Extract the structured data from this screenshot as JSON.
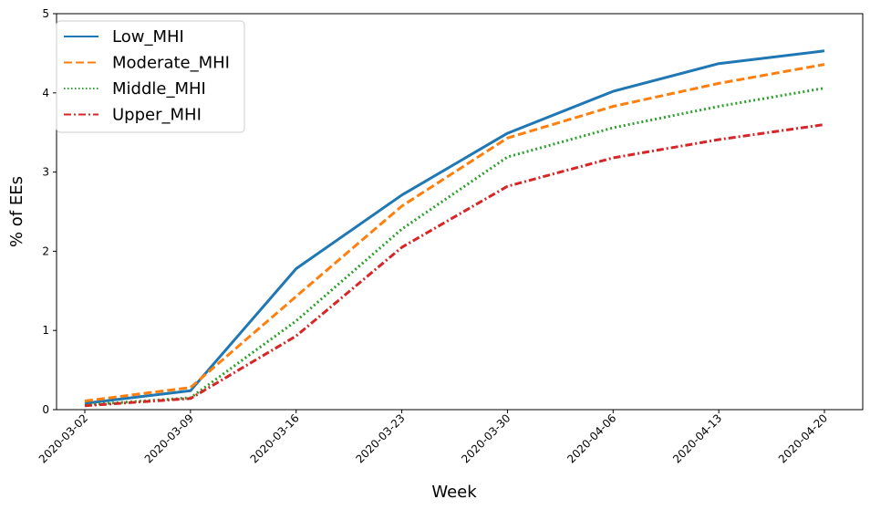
{
  "chart_data": {
    "type": "line",
    "xlabel": "Week",
    "ylabel": "% of EEs",
    "x": [
      "2020-03-02",
      "2020-03-09",
      "2020-03-16",
      "2020-03-23",
      "2020-03-30",
      "2020-04-06",
      "2020-04-13",
      "2020-04-20"
    ],
    "ylim": [
      0,
      5
    ],
    "yticks": [
      "0",
      "1",
      "2",
      "3",
      "4",
      "5"
    ],
    "legend_position": "top-left",
    "grid": false,
    "series": [
      {
        "name": "Low_MHI",
        "color": "#1f77b4",
        "style": "solid",
        "values": [
          0.08,
          0.24,
          1.78,
          2.71,
          3.49,
          4.02,
          4.37,
          4.53
        ]
      },
      {
        "name": "Moderate_MHI",
        "color": "#ff7f0e",
        "style": "dashed",
        "values": [
          0.11,
          0.28,
          1.43,
          2.57,
          3.43,
          3.83,
          4.12,
          4.36
        ]
      },
      {
        "name": "Middle_MHI",
        "color": "#2ca02c",
        "style": "dotted",
        "values": [
          0.06,
          0.15,
          1.12,
          2.28,
          3.19,
          3.56,
          3.83,
          4.06
        ]
      },
      {
        "name": "Upper_MHI",
        "color": "#d62728",
        "style": "dashdot",
        "values": [
          0.05,
          0.14,
          0.93,
          2.05,
          2.82,
          3.18,
          3.41,
          3.6
        ]
      }
    ]
  }
}
